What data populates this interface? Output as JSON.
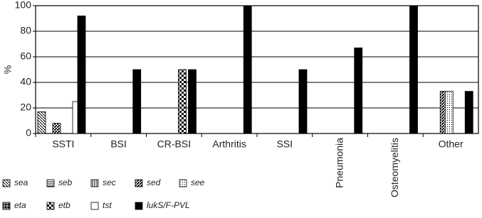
{
  "chart_data": {
    "type": "bar",
    "y_label": "%",
    "categories": [
      "SSTI",
      "BSI",
      "CR-BSI",
      "Arthritis",
      "SSI",
      "Pneumonia",
      "Osteomyelitis",
      "Other"
    ],
    "rotated_categories": [
      "Pneumonia",
      "Osteomyelitis"
    ],
    "ylim": [
      0,
      100
    ],
    "yticks": [
      0,
      20,
      40,
      60,
      80,
      100
    ],
    "grid": true,
    "series": [
      {
        "name": "sea",
        "color": "#000000",
        "pattern": "p-sea",
        "values": [
          17,
          0,
          0,
          0,
          0,
          0,
          0,
          0
        ]
      },
      {
        "name": "seb",
        "color": "#000000",
        "pattern": "p-seb",
        "values": [
          0,
          0,
          0,
          0,
          0,
          0,
          0,
          0
        ]
      },
      {
        "name": "sec",
        "color": "#000000",
        "pattern": "p-sec",
        "values": [
          0,
          0,
          0,
          0,
          0,
          0,
          0,
          0
        ]
      },
      {
        "name": "sed",
        "color": "#000000",
        "pattern": "p-sed",
        "values": [
          8,
          0,
          0,
          0,
          0,
          0,
          0,
          33
        ]
      },
      {
        "name": "see",
        "color": "#000000",
        "pattern": "p-see",
        "values": [
          0,
          0,
          0,
          0,
          0,
          0,
          0,
          33
        ]
      },
      {
        "name": "eta",
        "color": "#000000",
        "pattern": "p-eta",
        "values": [
          0,
          0,
          0,
          0,
          0,
          0,
          0,
          0
        ]
      },
      {
        "name": "etb",
        "color": "#000000",
        "pattern": "p-etb",
        "values": [
          0,
          0,
          50,
          0,
          0,
          0,
          0,
          0
        ]
      },
      {
        "name": "tst",
        "color": "#ffffff",
        "pattern": "",
        "values": [
          25,
          0,
          0,
          0,
          0,
          0,
          0,
          0
        ]
      },
      {
        "name": "lukS/F-PVL",
        "color": "#000000",
        "pattern": "",
        "values": [
          92,
          50,
          50,
          100,
          50,
          67,
          100,
          33
        ]
      }
    ]
  }
}
